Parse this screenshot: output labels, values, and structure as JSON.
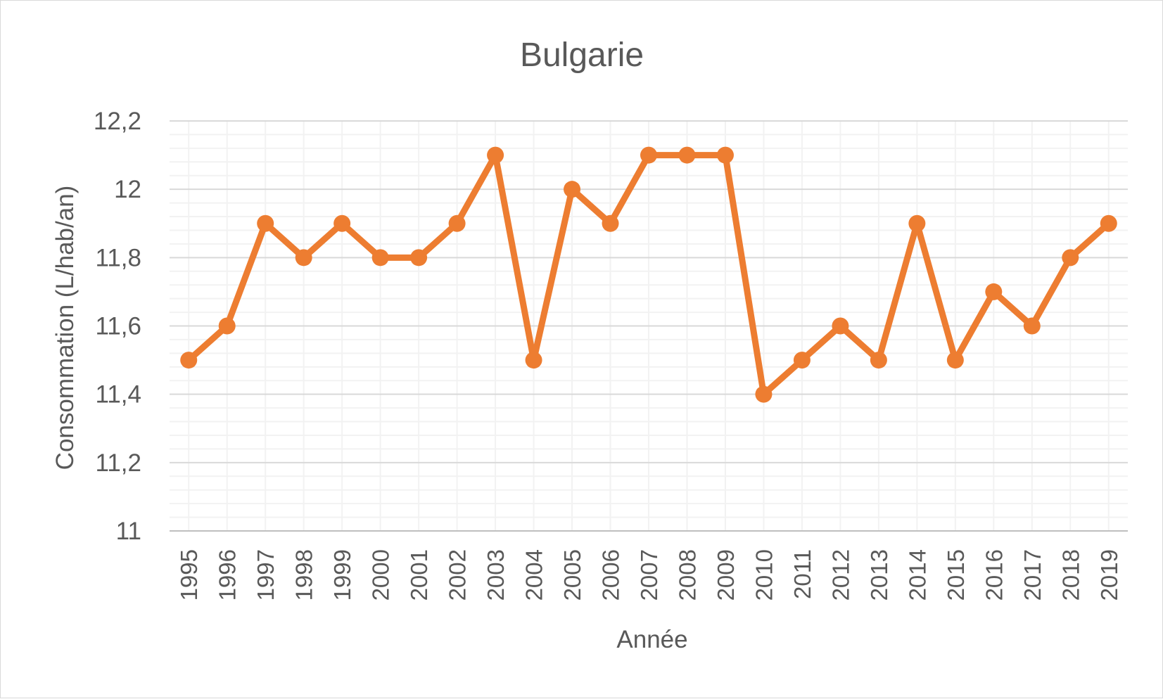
{
  "chart_data": {
    "type": "line",
    "title": "Bulgarie",
    "xlabel": "Année",
    "ylabel": "Consommation (L/hab/an)",
    "categories": [
      "1995",
      "1996",
      "1997",
      "1998",
      "1999",
      "2000",
      "2001",
      "2002",
      "2003",
      "2004",
      "2005",
      "2006",
      "2007",
      "2008",
      "2009",
      "2010",
      "2011",
      "2012",
      "2013",
      "2014",
      "2015",
      "2016",
      "2017",
      "2018",
      "2019"
    ],
    "series": [
      {
        "values": [
          11.5,
          11.6,
          11.9,
          11.8,
          11.9,
          11.8,
          11.8,
          11.9,
          12.1,
          11.5,
          12.0,
          11.9,
          12.1,
          12.1,
          12.1,
          11.4,
          11.5,
          11.6,
          11.5,
          11.9,
          11.5,
          11.7,
          11.6,
          11.8,
          11.9
        ],
        "color": "#ed7d31"
      }
    ],
    "ylim": [
      11,
      12.2
    ],
    "ytick_labels": [
      "11",
      "11,2",
      "11,4",
      "11,6",
      "11,8",
      "12",
      "12,2"
    ],
    "grid": true,
    "minor_grid": true,
    "legend": "none"
  }
}
